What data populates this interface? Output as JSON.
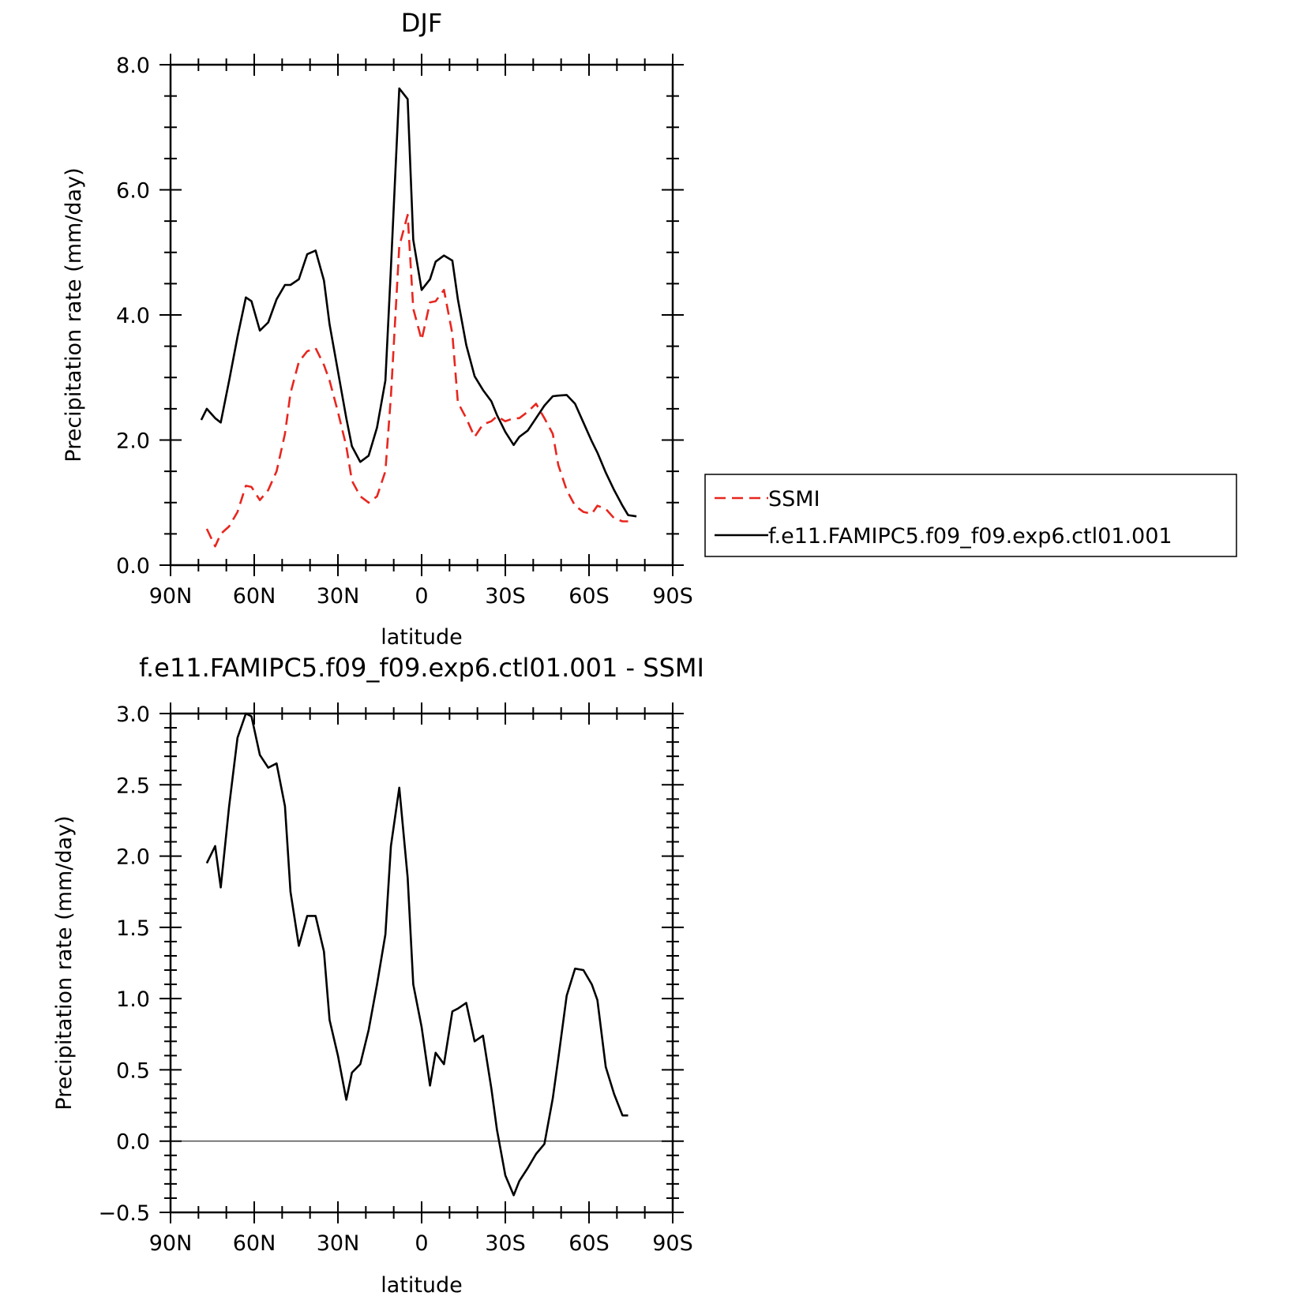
{
  "chart_data": [
    {
      "type": "line",
      "title": "DJF",
      "xlabel": "latitude",
      "ylabel": "Precipitation rate (mm/day)",
      "xlim": [
        90,
        -90
      ],
      "ylim": [
        0,
        8
      ],
      "x_ticks": [
        90,
        60,
        30,
        0,
        -30,
        -60,
        -90
      ],
      "x_tick_labels": [
        "90N",
        "60N",
        "30N",
        "0",
        "30S",
        "60S",
        "90S"
      ],
      "y_ticks": [
        0,
        2,
        4,
        6,
        8
      ],
      "y_tick_labels": [
        "0.0",
        "2.0",
        "4.0",
        "6.0",
        "8.0"
      ],
      "legend_position": "right",
      "series": [
        {
          "name": "SSMI",
          "color": "#e8261e",
          "dash": "dashed",
          "x": [
            77,
            74,
            72,
            69,
            66,
            63,
            61,
            58,
            55,
            52,
            49,
            47,
            44,
            41,
            38,
            35,
            33,
            30,
            27,
            25,
            22,
            19,
            16,
            13,
            11,
            8,
            5,
            3,
            0,
            -3,
            -5,
            -8,
            -11,
            -13,
            -16,
            -19,
            -22,
            -25,
            -27,
            -30,
            -33,
            -35,
            -38,
            -41,
            -44,
            -47,
            -49,
            -52,
            -55,
            -58,
            -61,
            -63,
            -66,
            -69,
            -72,
            -74
          ],
          "y": [
            0.58,
            0.3,
            0.5,
            0.62,
            0.85,
            1.27,
            1.25,
            1.04,
            1.2,
            1.5,
            2.1,
            2.75,
            3.25,
            3.42,
            3.47,
            3.2,
            2.95,
            2.45,
            1.9,
            1.35,
            1.1,
            1.0,
            1.1,
            1.5,
            2.7,
            5.1,
            5.6,
            4.1,
            3.6,
            4.2,
            4.22,
            4.4,
            3.7,
            2.6,
            2.35,
            2.05,
            2.25,
            2.3,
            2.38,
            2.3,
            2.35,
            2.35,
            2.45,
            2.58,
            2.35,
            2.1,
            1.6,
            1.2,
            0.95,
            0.85,
            0.82,
            0.95,
            0.9,
            0.75,
            0.7,
            0.7
          ]
        },
        {
          "name": "f.e11.FAMIPC5.f09_f09.exp6.ctl01.001",
          "color": "#000000",
          "dash": "solid",
          "x": [
            79,
            77,
            74,
            72,
            69,
            66,
            63,
            61,
            58,
            55,
            52,
            49,
            47,
            44,
            41,
            38,
            35,
            33,
            30,
            27,
            25,
            22,
            19,
            16,
            13,
            11,
            8,
            5,
            3,
            0,
            -3,
            -5,
            -8,
            -11,
            -13,
            -16,
            -19,
            -22,
            -25,
            -27,
            -30,
            -33,
            -35,
            -38,
            -41,
            -44,
            -47,
            -49,
            -52,
            -55,
            -58,
            -61,
            -63,
            -66,
            -69,
            -72,
            -74,
            -77
          ],
          "y": [
            2.32,
            2.5,
            2.35,
            2.28,
            2.95,
            3.65,
            4.28,
            4.22,
            3.75,
            3.88,
            4.25,
            4.48,
            4.48,
            4.57,
            4.97,
            5.03,
            4.55,
            3.85,
            3.1,
            2.35,
            1.9,
            1.65,
            1.75,
            2.2,
            2.95,
            4.75,
            7.62,
            7.45,
            5.2,
            4.4,
            4.57,
            4.85,
            4.95,
            4.87,
            4.25,
            3.52,
            3.02,
            2.8,
            2.62,
            2.4,
            2.13,
            1.92,
            2.05,
            2.15,
            2.35,
            2.55,
            2.7,
            2.71,
            2.72,
            2.58,
            2.28,
            1.98,
            1.8,
            1.48,
            1.2,
            0.95,
            0.8,
            0.78
          ]
        }
      ]
    },
    {
      "type": "line",
      "title": "f.e11.FAMIPC5.f09_f09.exp6.ctl01.001 - SSMI",
      "xlabel": "latitude",
      "ylabel": "Precipitation rate (mm/day)",
      "xlim": [
        90,
        -90
      ],
      "ylim": [
        -0.5,
        3
      ],
      "x_ticks": [
        90,
        60,
        30,
        0,
        -30,
        -60,
        -90
      ],
      "x_tick_labels": [
        "90N",
        "60N",
        "30N",
        "0",
        "30S",
        "60S",
        "90S"
      ],
      "y_ticks": [
        -0.5,
        0,
        0.5,
        1,
        1.5,
        2,
        2.5,
        3
      ],
      "y_tick_labels": [
        "−0.5",
        "0.0",
        "0.5",
        "1.0",
        "1.5",
        "2.0",
        "2.5",
        "3.0"
      ],
      "series": [
        {
          "color": "#000000",
          "dash": "solid",
          "x": [
            77,
            74,
            72,
            69,
            66,
            63,
            61,
            58,
            55,
            52,
            49,
            47,
            44,
            41,
            38,
            35,
            33,
            30,
            27,
            25,
            22,
            19,
            16,
            13,
            11,
            8,
            5,
            3,
            0,
            -3,
            -5,
            -8,
            -11,
            -13,
            -16,
            -19,
            -22,
            -25,
            -27,
            -30,
            -33,
            -35,
            -38,
            -41,
            -44,
            -47,
            -49,
            -52,
            -55,
            -58,
            -61,
            -63,
            -66,
            -69,
            -72,
            -74
          ],
          "y": [
            1.95,
            2.07,
            1.78,
            2.35,
            2.83,
            3.0,
            2.98,
            2.71,
            2.62,
            2.65,
            2.35,
            1.75,
            1.37,
            1.58,
            1.58,
            1.33,
            0.85,
            0.6,
            0.29,
            0.48,
            0.54,
            0.78,
            1.1,
            1.45,
            2.07,
            2.48,
            1.85,
            1.1,
            0.8,
            0.39,
            0.62,
            0.54,
            0.91,
            0.93,
            0.97,
            0.7,
            0.74,
            0.37,
            0.08,
            -0.24,
            -0.38,
            -0.28,
            -0.19,
            -0.09,
            -0.02,
            0.3,
            0.58,
            1.02,
            1.21,
            1.2,
            1.1,
            0.99,
            0.52,
            0.33,
            0.18,
            0.18
          ]
        }
      ]
    }
  ]
}
